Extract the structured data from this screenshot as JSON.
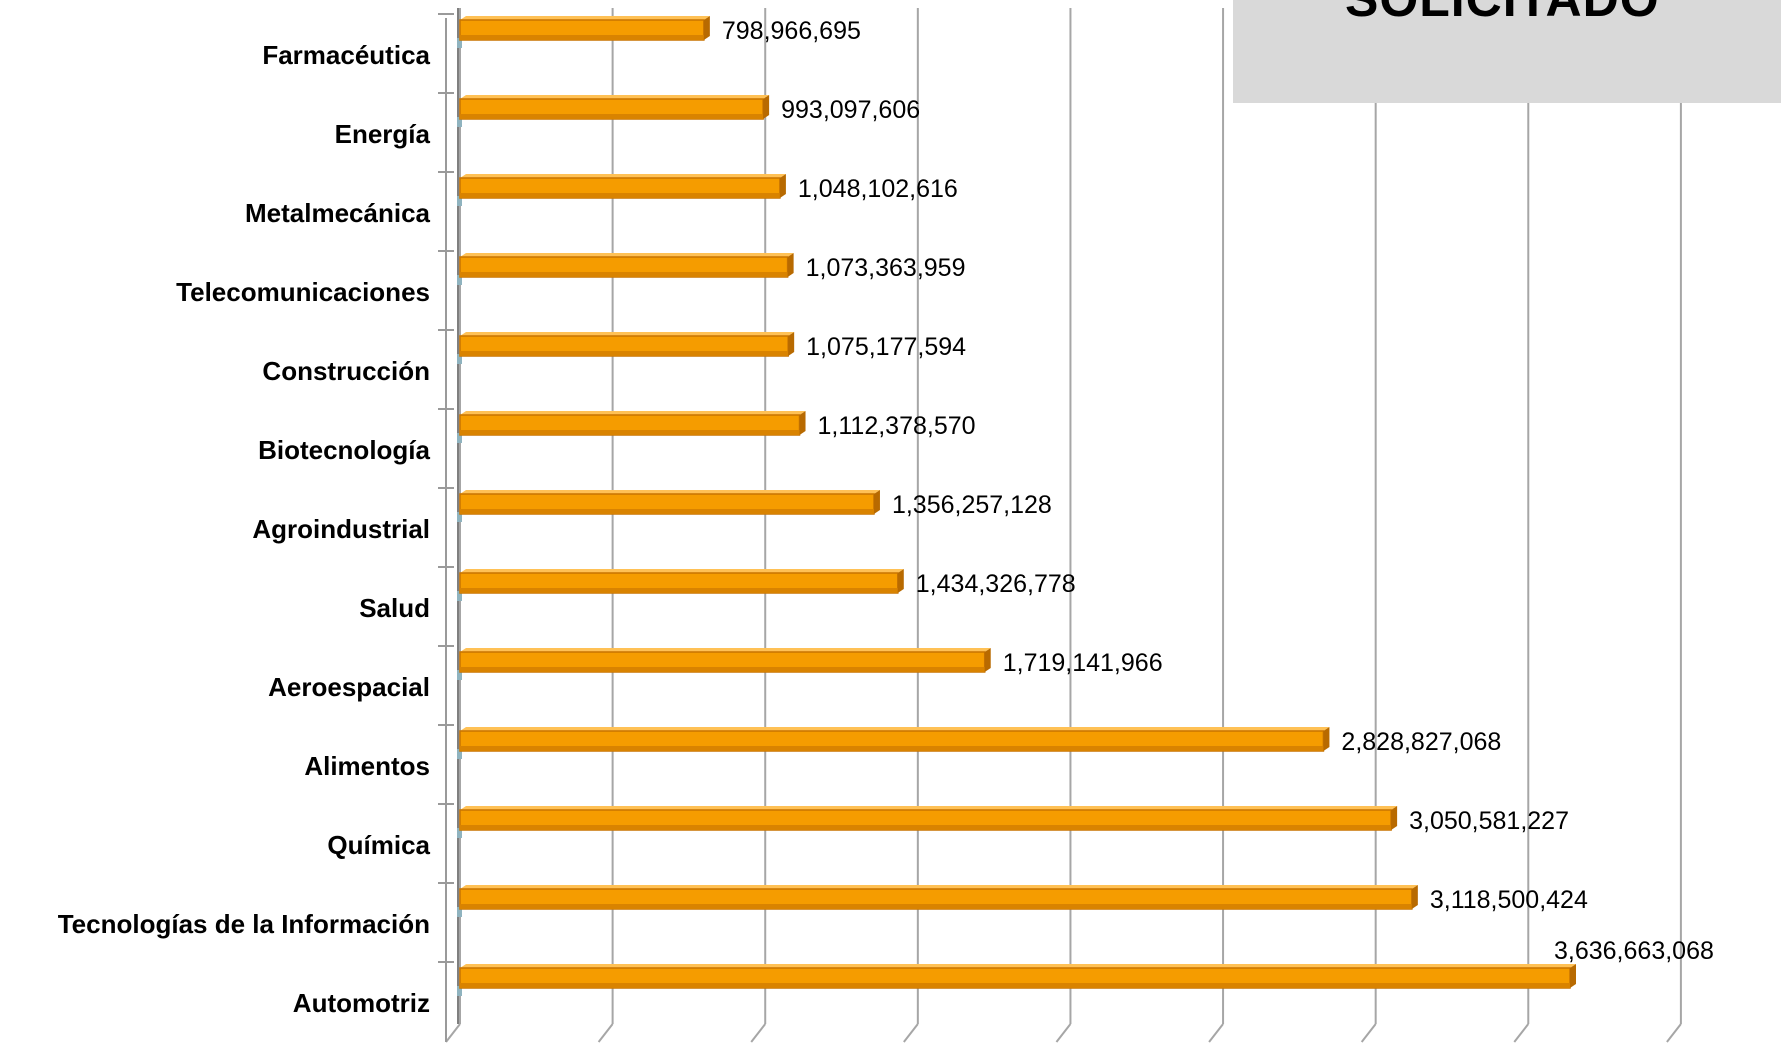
{
  "chart_data": {
    "type": "bar",
    "orientation": "horizontal",
    "title": "SOLICITADO",
    "categories": [
      "Farmacéutica",
      "Energía",
      "Metalmecánica",
      "Telecomunicaciones",
      "Construcción",
      "Biotecnología",
      "Agroindustrial",
      "Salud",
      "Aeroespacial",
      "Alimentos",
      "Química",
      "Tecnologías de la Información",
      "Automotriz"
    ],
    "values": [
      798966695,
      993097606,
      1048102616,
      1073363959,
      1075177594,
      1112378570,
      1356257128,
      1434326778,
      1719141966,
      2828827068,
      3050581227,
      3118500424,
      3636663068
    ],
    "value_labels": [
      "798,966,695",
      "993,097,606",
      "1,048,102,616",
      "1,073,363,959",
      "1,075,177,594",
      "1,112,378,570",
      "1,356,257,128",
      "1,434,326,778",
      "1,719,141,966",
      "2,828,827,068",
      "3,050,581,227",
      "3,118,500,424",
      "3,636,663,068"
    ],
    "xlim": [
      0,
      4000000000
    ],
    "grid": true,
    "xlabel": "",
    "ylabel": "",
    "bar_color": "#f59c00",
    "bar_edge_color": "#c87400",
    "grid_color": "#a6a6a6",
    "title_box_color": "#d9d9d9"
  }
}
